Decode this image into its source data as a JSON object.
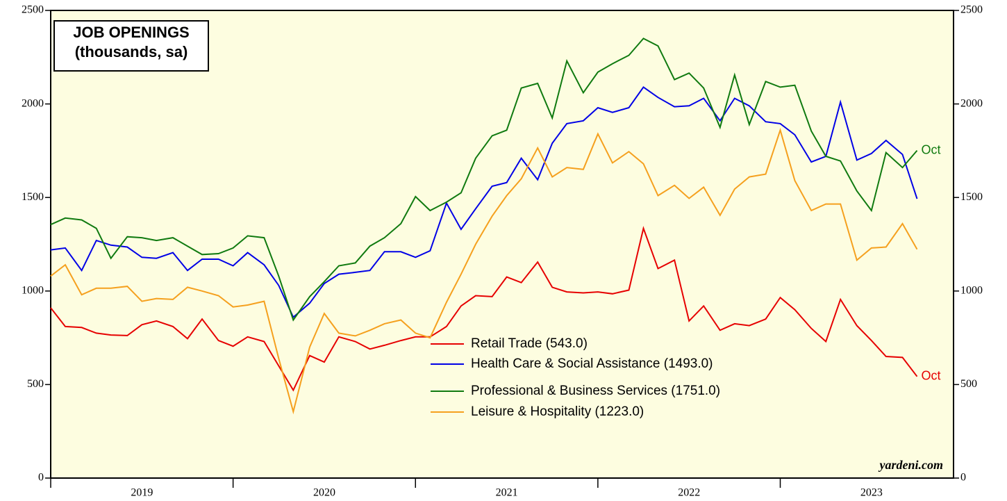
{
  "chart_data": {
    "type": "line",
    "title": [
      "JOB OPENINGS",
      "(thousands, sa)"
    ],
    "source": "yardeni.com",
    "x": [
      2019.0,
      2019.08,
      2019.17,
      2019.25,
      2019.33,
      2019.42,
      2019.5,
      2019.58,
      2019.67,
      2019.75,
      2019.83,
      2019.92,
      2020.0,
      2020.08,
      2020.17,
      2020.25,
      2020.33,
      2020.42,
      2020.5,
      2020.58,
      2020.67,
      2020.75,
      2020.83,
      2020.92,
      2021.0,
      2021.08,
      2021.17,
      2021.25,
      2021.33,
      2021.42,
      2021.5,
      2021.58,
      2021.67,
      2021.75,
      2021.83,
      2021.92,
      2022.0,
      2022.08,
      2022.17,
      2022.25,
      2022.33,
      2022.42,
      2022.5,
      2022.58,
      2022.67,
      2022.75,
      2022.83,
      2022.92,
      2023.0,
      2023.08,
      2023.17,
      2023.25,
      2023.33,
      2023.42,
      2023.5,
      2023.58,
      2023.67,
      2023.75
    ],
    "xlim": [
      2019,
      2023.95
    ],
    "xticks": [
      2019,
      2020,
      2021,
      2022,
      2023
    ],
    "ylim": [
      0,
      2500
    ],
    "yticks": [
      0,
      500,
      1000,
      1500,
      2000,
      2500
    ],
    "background": "#fdfde0",
    "series": [
      {
        "name": "Retail Trade (543.0)",
        "color": "#e60000",
        "end_label": "Oct",
        "values": [
          910,
          810,
          805,
          775,
          765,
          762,
          820,
          840,
          810,
          745,
          850,
          735,
          705,
          755,
          730,
          600,
          470,
          655,
          620,
          755,
          730,
          690,
          710,
          735,
          755,
          755,
          810,
          920,
          975,
          970,
          1075,
          1045,
          1155,
          1020,
          995,
          990,
          995,
          985,
          1005,
          1335,
          1120,
          1165,
          840,
          920,
          790,
          825,
          815,
          850,
          965,
          900,
          800,
          730,
          955,
          815,
          735,
          650,
          645,
          543
        ]
      },
      {
        "name": "Health Care & Social Assistance (1493.0)",
        "color": "#0000e6",
        "values": [
          1220,
          1230,
          1110,
          1270,
          1245,
          1235,
          1180,
          1175,
          1205,
          1110,
          1170,
          1170,
          1135,
          1205,
          1140,
          1030,
          860,
          935,
          1040,
          1090,
          1100,
          1110,
          1210,
          1210,
          1180,
          1215,
          1470,
          1330,
          1440,
          1560,
          1580,
          1710,
          1595,
          1790,
          1895,
          1910,
          1980,
          1955,
          1980,
          2090,
          2035,
          1985,
          1990,
          2030,
          1910,
          2030,
          1990,
          1905,
          1895,
          1835,
          1690,
          1720,
          2010,
          1700,
          1735,
          1805,
          1730,
          1493
        ]
      },
      {
        "name": "Professional & Business Services (1751.0)",
        "color": "#107a10",
        "end_label": "Oct",
        "values": [
          1355,
          1390,
          1380,
          1335,
          1175,
          1290,
          1285,
          1270,
          1285,
          1240,
          1195,
          1200,
          1230,
          1295,
          1285,
          1080,
          845,
          970,
          1050,
          1135,
          1150,
          1240,
          1285,
          1360,
          1505,
          1430,
          1475,
          1525,
          1710,
          1830,
          1860,
          2085,
          2110,
          1925,
          2230,
          2060,
          2170,
          2215,
          2260,
          2350,
          2310,
          2130,
          2165,
          2085,
          1875,
          2155,
          1890,
          2120,
          2090,
          2100,
          1855,
          1720,
          1695,
          1535,
          1430,
          1740,
          1660,
          1751
        ]
      },
      {
        "name": "Leisure & Hospitality (1223.0)",
        "color": "#f5a01e",
        "values": [
          1080,
          1140,
          980,
          1015,
          1015,
          1025,
          945,
          960,
          955,
          1020,
          1000,
          975,
          915,
          925,
          945,
          640,
          355,
          700,
          880,
          775,
          760,
          790,
          825,
          845,
          775,
          750,
          940,
          1090,
          1250,
          1400,
          1510,
          1600,
          1765,
          1610,
          1660,
          1650,
          1840,
          1685,
          1745,
          1680,
          1510,
          1565,
          1495,
          1555,
          1405,
          1545,
          1610,
          1625,
          1860,
          1590,
          1430,
          1465,
          1465,
          1165,
          1230,
          1235,
          1360,
          1223
        ]
      }
    ]
  }
}
